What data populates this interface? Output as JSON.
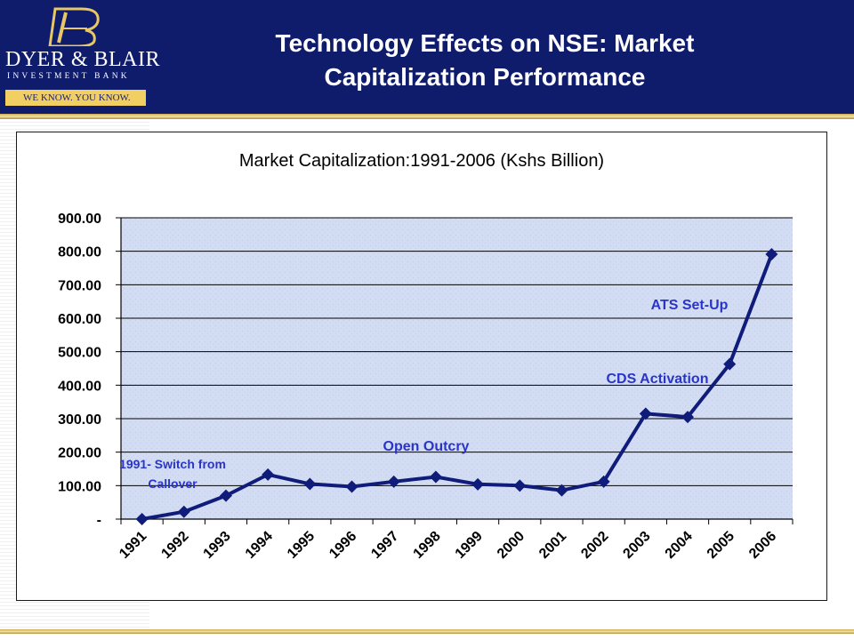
{
  "header": {
    "logo_name": "DYER & BLAIR",
    "logo_sub": "INVESTMENT BANK",
    "logo_tagline": "WE KNOW. YOU KNOW.",
    "title_line1": "Technology Effects on NSE: Market",
    "title_line2": "Capitalization Performance"
  },
  "colors": {
    "header_bg": "#0f1b6b",
    "gold": "#d9b85a",
    "series": "#0f1c7a",
    "annotation": "#2a35c8"
  },
  "chart_data": {
    "type": "line",
    "title": "Market Capitalization:1991-2006  (Kshs Billion)",
    "categories": [
      "1991",
      "1992",
      "1993",
      "1994",
      "1995",
      "1996",
      "1997",
      "1998",
      "1999",
      "2000",
      "2001",
      "2002",
      "2003",
      "2004",
      "2005",
      "2006"
    ],
    "series": [
      {
        "values": [
          0,
          22,
          70,
          133,
          105,
          97,
          112,
          126,
          104,
          100,
          86,
          112,
          315,
          305,
          463,
          791
        ]
      }
    ],
    "ylim": [
      0,
      900
    ],
    "yticks": [
      0,
      100,
      200,
      300,
      400,
      500,
      600,
      700,
      800,
      900
    ],
    "ytick_labels": [
      "-",
      "100.00",
      "200.00",
      "300.00",
      "400.00",
      "500.00",
      "600.00",
      "700.00",
      "800.00",
      "900.00"
    ],
    "grid": true,
    "marker": "diamond",
    "annotations": [
      {
        "lines": [
          "1991- Switch from",
          "Callover"
        ],
        "near": "1991"
      },
      {
        "lines": [
          "Open Outcry"
        ],
        "near": "1998"
      },
      {
        "lines": [
          "CDS Activation"
        ],
        "near": "2004"
      },
      {
        "lines": [
          "ATS Set-Up"
        ],
        "near": "2005"
      }
    ]
  }
}
